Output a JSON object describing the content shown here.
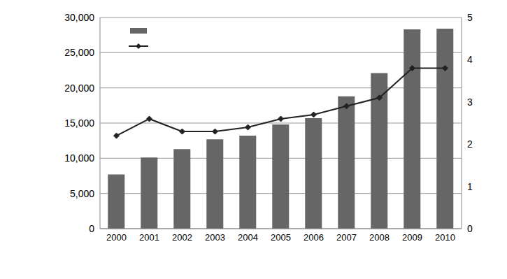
{
  "chart_data": {
    "type": "bar",
    "categories": [
      "2000",
      "2001",
      "2002",
      "2003",
      "2004",
      "2005",
      "2006",
      "2007",
      "2008",
      "2009",
      "2010"
    ],
    "series": [
      {
        "color": "#666666",
        "values": [
          7700,
          10100,
          11300,
          12700,
          13200,
          14800,
          15700,
          18800,
          22100,
          28300,
          28400
        ]
      },
      {
        "type": "line",
        "axis": "y2",
        "color": "#222222",
        "marker": "diamond",
        "values": [
          2.2,
          2.6,
          2.3,
          2.3,
          2.4,
          2.6,
          2.7,
          2.9,
          3.1,
          3.8,
          3.8
        ]
      }
    ],
    "ylim": [
      0,
      30000
    ],
    "yticks": [
      0,
      {
        "value": 5000,
        "label": "5,000"
      },
      {
        "value": 10000,
        "label": "10,000"
      },
      {
        "value": 15000,
        "label": "15,000"
      },
      {
        "value": 20000,
        "label": "20,000"
      },
      {
        "value": 25000,
        "label": "25,000"
      },
      {
        "value": 30000,
        "label": "30,000"
      }
    ],
    "y2lim": [
      0,
      5
    ],
    "y2ticks": [
      0,
      1,
      2,
      3,
      4,
      5
    ],
    "grid": true
  }
}
